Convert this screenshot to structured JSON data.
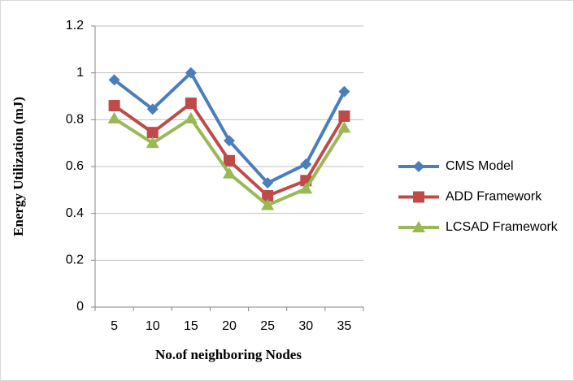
{
  "chart_data": {
    "type": "line",
    "xlabel": "No.of neighboring Nodes",
    "ylabel": "Energy Utilization (mJ)",
    "categories": [
      "5",
      "10",
      "15",
      "20",
      "25",
      "30",
      "35"
    ],
    "series": [
      {
        "name": "CMS Model",
        "color": "#4a7ebb",
        "marker": "diamond",
        "values": [
          0.97,
          0.845,
          1.0,
          0.71,
          0.53,
          0.61,
          0.92
        ]
      },
      {
        "name": "ADD Framework",
        "color": "#be4b48",
        "marker": "square",
        "values": [
          0.86,
          0.745,
          0.87,
          0.625,
          0.475,
          0.54,
          0.815
        ]
      },
      {
        "name": "LCSAD Framework",
        "color": "#98b954",
        "marker": "triangle",
        "values": [
          0.805,
          0.7,
          0.805,
          0.57,
          0.435,
          0.505,
          0.765
        ]
      }
    ],
    "ylim": [
      0,
      1.2
    ],
    "yticks": [
      0,
      0.2,
      0.4,
      0.6,
      0.8,
      1,
      1.2
    ],
    "grid": true,
    "legend": "right"
  }
}
